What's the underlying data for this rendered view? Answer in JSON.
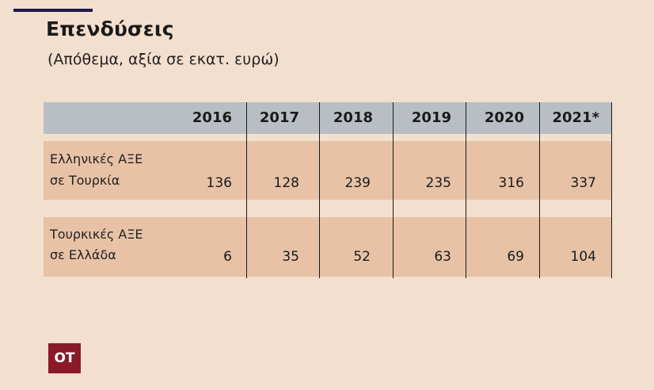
{
  "title": "Επενδύσεις",
  "subtitle": "(Απόθεμα, αξία σε εκατ. ευρώ)",
  "logo_text": "OT",
  "colors": {
    "background": "#f3dfcd",
    "header_band": "#b9bec4",
    "row_band": "#e7c2a6",
    "logo": "#8a1a28",
    "top_rule": "#1c1b4d"
  },
  "chart_data": {
    "type": "table",
    "columns": [
      "2016",
      "2017",
      "2018",
      "2019",
      "2020",
      "2021*"
    ],
    "rows": [
      {
        "label_line1": "Ελληνικές ΑΞΕ",
        "label_line2": "σε Τουρκία",
        "values": [
          136,
          128,
          239,
          235,
          316,
          337
        ]
      },
      {
        "label_line1": "Τουρκικές ΑΞΕ",
        "label_line2": "σε Ελλάδα",
        "values": [
          6,
          35,
          52,
          63,
          69,
          104
        ]
      }
    ]
  }
}
